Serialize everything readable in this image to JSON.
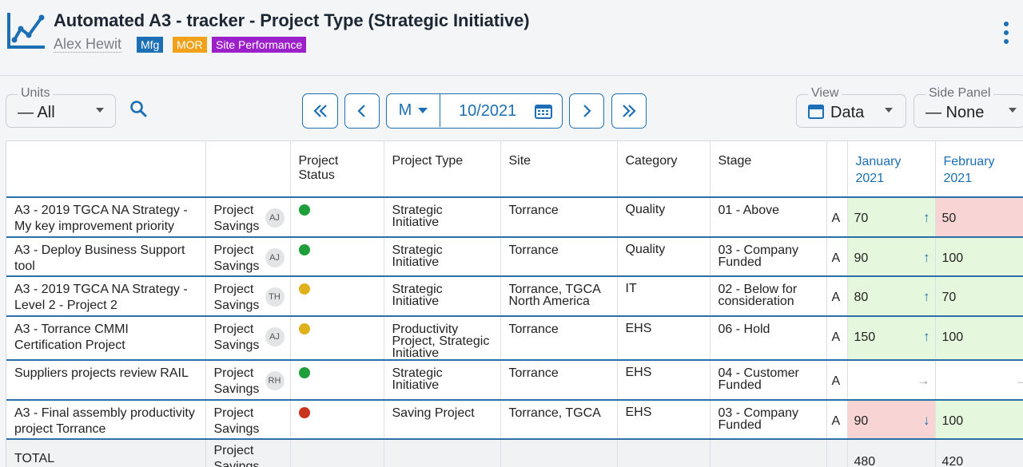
{
  "header": {
    "title": "Automated A3 - tracker - Project Type (Strategic Initiative)",
    "owner": "Alex Hewit",
    "tags": [
      "Mfg",
      "MOR",
      "Site Performance"
    ]
  },
  "toolbar": {
    "units_label": "Units",
    "units_value": "— All",
    "period_unit": "M",
    "period_date": "10/2021",
    "view_label": "View",
    "view_value": "Data",
    "side_label": "Side Panel",
    "side_value": "— None"
  },
  "table": {
    "columns": [
      "",
      "",
      "Project Status",
      "Project Type",
      "Site",
      "Category",
      "Stage",
      "",
      "January 2021",
      "February 2021"
    ],
    "month1": [
      "January",
      "2021"
    ],
    "month2": [
      "February",
      "2021"
    ],
    "rows": [
      {
        "name": "A3 - 2019 TGCA NA Strategy - My key improvement priority",
        "pt1": "Project",
        "pt2": "Savings",
        "avatar": "AJ",
        "status": "#1f9e3c",
        "type1": "Strategic",
        "type2": "Initiative",
        "type3": "",
        "site": "Torrance",
        "site2": "",
        "category": "Quality",
        "stage1": "01 - Above",
        "stage2": "",
        "a": "A",
        "jan": "70",
        "jan_trend": "up",
        "jan_bg": "green",
        "feb": "50",
        "feb_trend": "down",
        "feb_bg": "red"
      },
      {
        "name": "A3 - Deploy Business Support tool",
        "pt1": "Project",
        "pt2": "Savings",
        "avatar": "AJ",
        "status": "#1f9e3c",
        "type1": "Strategic",
        "type2": "Initiative",
        "type3": "",
        "site": "Torrance",
        "site2": "",
        "category": "Quality",
        "stage1": "03 - Company",
        "stage2": "Funded",
        "a": "A",
        "jan": "90",
        "jan_trend": "up",
        "jan_bg": "green",
        "feb": "100",
        "feb_trend": "up",
        "feb_bg": "green"
      },
      {
        "name": "A3 - 2019 TGCA NA Strategy - Level 2 - Project 2",
        "pt1": "Project",
        "pt2": "Savings",
        "avatar": "TH",
        "status": "#e0b11c",
        "type1": "Strategic",
        "type2": "Initiative",
        "type3": "",
        "site": "Torrance, TGCA",
        "site2": "North America",
        "category": "IT",
        "stage1": "02 - Below for",
        "stage2": "consideration",
        "a": "A",
        "jan": "80",
        "jan_trend": "up",
        "jan_bg": "green",
        "feb": "70",
        "feb_trend": "down",
        "feb_bg": "green"
      },
      {
        "name": "A3 - Torrance CMMI Certification Project",
        "pt1": "Project",
        "pt2": "Savings",
        "avatar": "AJ",
        "status": "#e0b11c",
        "type1": "Productivity",
        "type2": "Project, Strategic",
        "type3": "Initiative",
        "site": "Torrance",
        "site2": "",
        "category": "EHS",
        "stage1": "06 - Hold",
        "stage2": "",
        "a": "A",
        "jan": "150",
        "jan_trend": "up",
        "jan_bg": "green",
        "feb": "100",
        "feb_trend": "down",
        "feb_bg": "green"
      },
      {
        "name": "Suppliers projects review RAIL",
        "pt1": "Project",
        "pt2": "Savings",
        "avatar": "RH",
        "status": "#1f9e3c",
        "type1": "Strategic",
        "type2": "Initiative",
        "type3": "",
        "site": "Torrance",
        "site2": "",
        "category": "EHS",
        "stage1": "04 - Customer",
        "stage2": "Funded",
        "a": "A",
        "jan": "",
        "jan_trend": "flat",
        "jan_bg": "none",
        "feb": "",
        "feb_trend": "flat",
        "feb_bg": "none"
      },
      {
        "name": "A3 - Final assembly productivity project Torrance",
        "pt1": "Project",
        "pt2": "Savings",
        "avatar": "",
        "status": "#c9341c",
        "type1": "Saving Project",
        "type2": "",
        "type3": "",
        "site": "Torrance, TGCA",
        "site2": "",
        "category": "EHS",
        "stage1": "03 - Company",
        "stage2": "Funded",
        "a": "A",
        "jan": "90",
        "jan_trend": "down",
        "jan_bg": "red",
        "feb": "100",
        "feb_trend": "down",
        "feb_bg": "green"
      }
    ],
    "total": {
      "name": "TOTAL",
      "pt1": "Project",
      "pt2": "Savings",
      "jan": "480",
      "feb": "420"
    }
  },
  "colors": {
    "accent": "#1c6fb5",
    "green_cell": "#e5f7dd",
    "red_cell": "#f9d4d4"
  }
}
